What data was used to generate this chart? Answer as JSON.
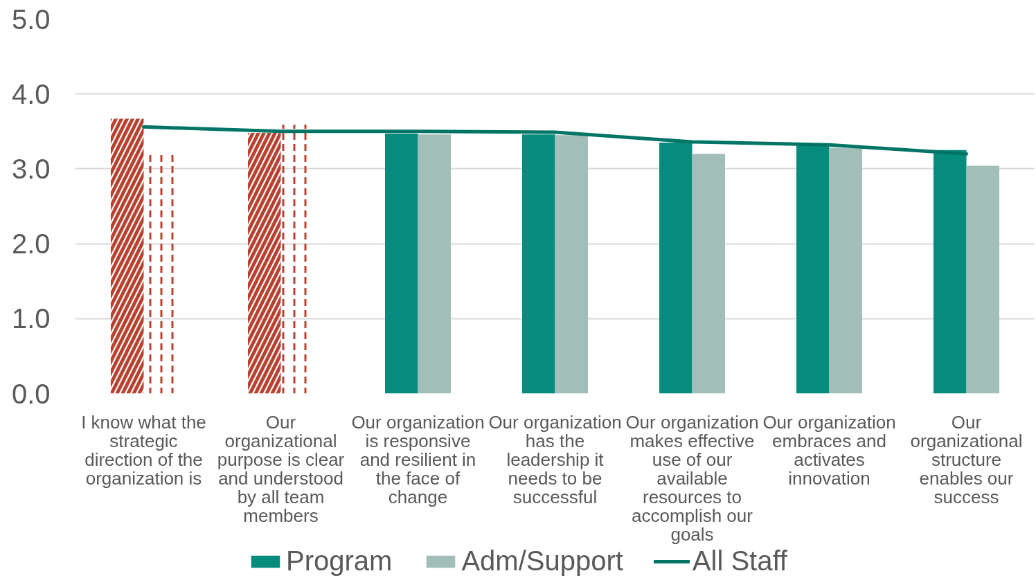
{
  "chart_data": {
    "type": "bar",
    "categories": [
      "I know what the strategic direction of the organization is",
      "Our organizational purpose is clear and understood by all team members",
      "Our organization is responsive and resilient in the face of change",
      "Our organization has the leadership it needs to be successful",
      "Our organization makes effective use of our available resources to accomplish our goals",
      "Our organization embraces and activates innovation",
      "Our organizational structure enables our success"
    ],
    "series": [
      {
        "name": "Program",
        "color": "#068b7c",
        "colors": [
          "#b9412f",
          "#b9412f",
          "#068b7c",
          "#068b7c",
          "#068b7c",
          "#068b7c",
          "#068b7c"
        ],
        "values": [
          3.67,
          3.48,
          3.47,
          3.46,
          3.35,
          3.34,
          3.25
        ]
      },
      {
        "name": "Adm/Support",
        "color": "#a1bfb8",
        "colors": [
          "#b9412f",
          "#b9412f",
          "#a1bfb8",
          "#a1bfb8",
          "#a1bfb8",
          "#a1bfb8",
          "#a1bfb8"
        ],
        "values": [
          3.22,
          3.59,
          3.46,
          3.45,
          3.2,
          3.28,
          3.04
        ]
      },
      {
        "name": "All Staff",
        "type": "line",
        "color": "#007566",
        "values": [
          3.56,
          3.5,
          3.5,
          3.49,
          3.36,
          3.32,
          3.2
        ]
      }
    ],
    "ylim": [
      0,
      5
    ],
    "yticks": [
      {
        "value": 0,
        "label": "0.0"
      },
      {
        "value": 1,
        "label": "1.0"
      },
      {
        "value": 2,
        "label": "2.0"
      },
      {
        "value": 3,
        "label": "3.0"
      },
      {
        "value": 4,
        "label": "4.0"
      },
      {
        "value": 5,
        "label": "5.0"
      }
    ],
    "grid": "y",
    "legend": "bottom"
  }
}
